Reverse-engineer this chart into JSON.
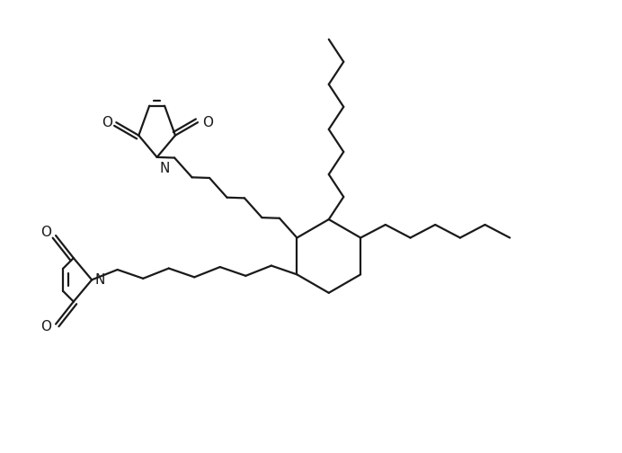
{
  "bg_color": "#ffffff",
  "line_color": "#1a1a1a",
  "line_width": 1.6,
  "font_size": 11,
  "figsize": [
    6.92,
    5.04
  ],
  "dpi": 100,
  "xlim": [
    0,
    10.5
  ],
  "ylim": [
    0,
    7.5
  ]
}
